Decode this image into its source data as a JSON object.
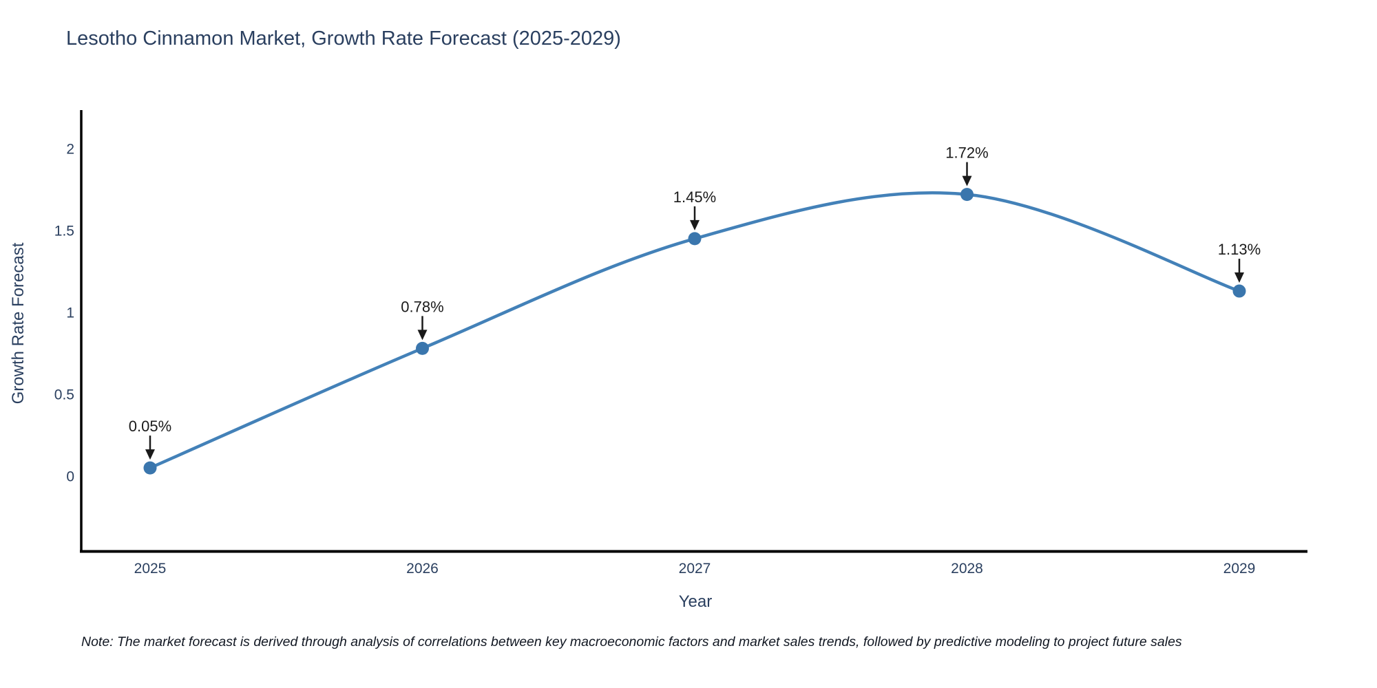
{
  "chart_data": {
    "type": "line",
    "title": "Lesotho Cinnamon Market, Growth Rate Forecast (2025-2029)",
    "x": [
      2025,
      2026,
      2027,
      2028,
      2029
    ],
    "y": [
      0.05,
      0.78,
      1.45,
      1.72,
      1.13
    ],
    "point_labels": [
      "0.05%",
      "0.78%",
      "1.45%",
      "1.72%",
      "1.13%"
    ],
    "xlabel": "Year",
    "ylabel": "Growth Rate Forecast",
    "yticks": [
      0,
      0.5,
      1,
      1.5,
      2
    ],
    "ytick_labels": [
      "0",
      "0.5",
      "1",
      "1.5",
      "2"
    ],
    "xtick_labels": [
      "2025",
      "2026",
      "2027",
      "2028",
      "2029"
    ],
    "ylim": [
      -0.46,
      2.24
    ],
    "xlim": [
      2024.75,
      2029.25
    ],
    "grid": false,
    "legend": "none",
    "line_shape": "spline",
    "line_color": "#4381b8",
    "marker_color": "#3a76ad",
    "axis_color": "#000000",
    "annotation_arrow_color": "#1a1a1a",
    "title_color": "#2a3f5f",
    "note": "Note: The market forecast is derived through analysis of correlations between key macroeconomic factors and market sales trends, followed by predictive modeling to project future sales"
  }
}
